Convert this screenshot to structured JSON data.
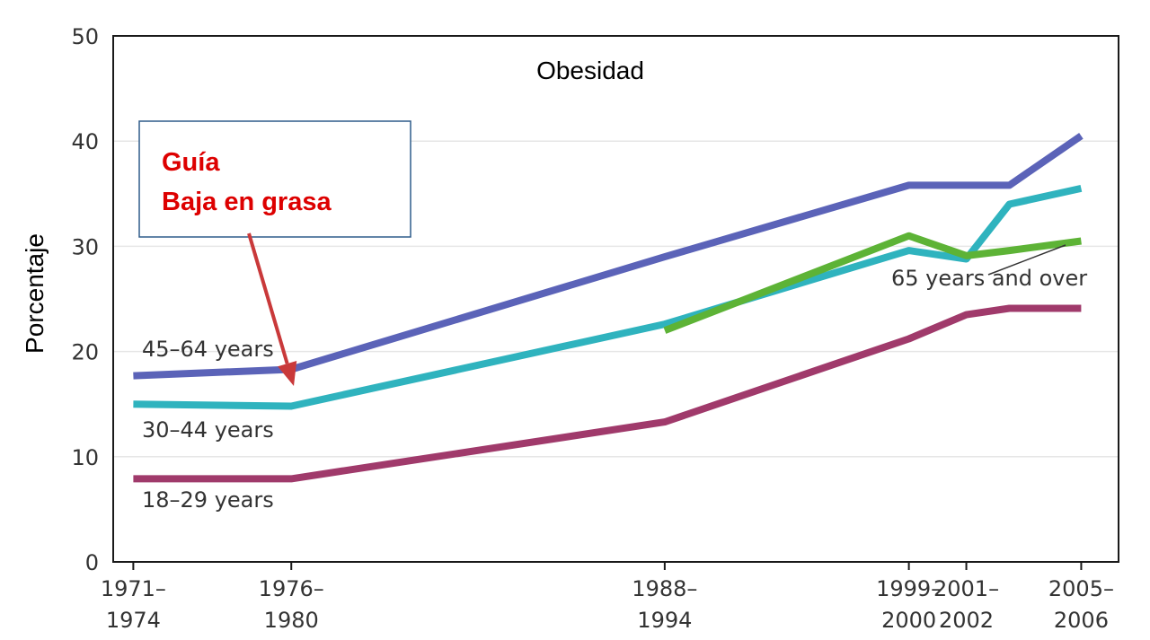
{
  "chart_data": {
    "type": "line",
    "title": "Obesidad",
    "xlabel": "",
    "ylabel": "Porcentaje",
    "ylim": [
      0,
      50
    ],
    "yticks": [
      0,
      10,
      20,
      30,
      40,
      50
    ],
    "x": [
      1972.5,
      1978,
      1991,
      1999.5,
      2001.5,
      2003,
      2005.5
    ],
    "xticks": [
      {
        "x": 1972.5,
        "line1": "1971–",
        "line2": "1974"
      },
      {
        "x": 1978,
        "line1": "1976–",
        "line2": "1980"
      },
      {
        "x": 1991,
        "line1": "1988–",
        "line2": "1994"
      },
      {
        "x": 1999.5,
        "line1": "1999–",
        "line2": "2000"
      },
      {
        "x": 2001.5,
        "line1": "2001–",
        "line2": "2002"
      },
      {
        "x": 2005.5,
        "line1": "2005–",
        "line2": "2006"
      }
    ],
    "grid": true,
    "series": [
      {
        "name": "45–64 years",
        "color": "#5b63b8",
        "x": [
          1972.5,
          1978,
          1991,
          1999.5,
          2001.5,
          2003,
          2005.5
        ],
        "values": [
          17.7,
          18.3,
          29.0,
          35.8,
          35.8,
          35.8,
          40.5
        ]
      },
      {
        "name": "30–44 years",
        "color": "#2fb3be",
        "x": [
          1972.5,
          1978,
          1991,
          1999.5,
          2001.5,
          2003,
          2005.5
        ],
        "values": [
          15.0,
          14.8,
          22.6,
          29.6,
          28.8,
          34.0,
          35.5
        ]
      },
      {
        "name": "65 years and over",
        "color": "#5db336",
        "x": [
          1991,
          1999.5,
          2001.5,
          2003,
          2005.5
        ],
        "values": [
          22.0,
          31.0,
          29.1,
          29.6,
          30.5
        ]
      },
      {
        "name": "18–29 years",
        "color": "#a03a6b",
        "x": [
          1972.5,
          1978,
          1991,
          1999.5,
          2001.5,
          2003,
          2005.5
        ],
        "values": [
          7.9,
          7.9,
          13.3,
          21.2,
          23.5,
          24.1,
          24.1
        ]
      }
    ],
    "annotation": {
      "lines": [
        "Guía",
        "Baja en grasa"
      ],
      "text_color": "#dd0000",
      "box_border_color": "#2e5c8a",
      "arrow_color": "#c9393a"
    }
  }
}
